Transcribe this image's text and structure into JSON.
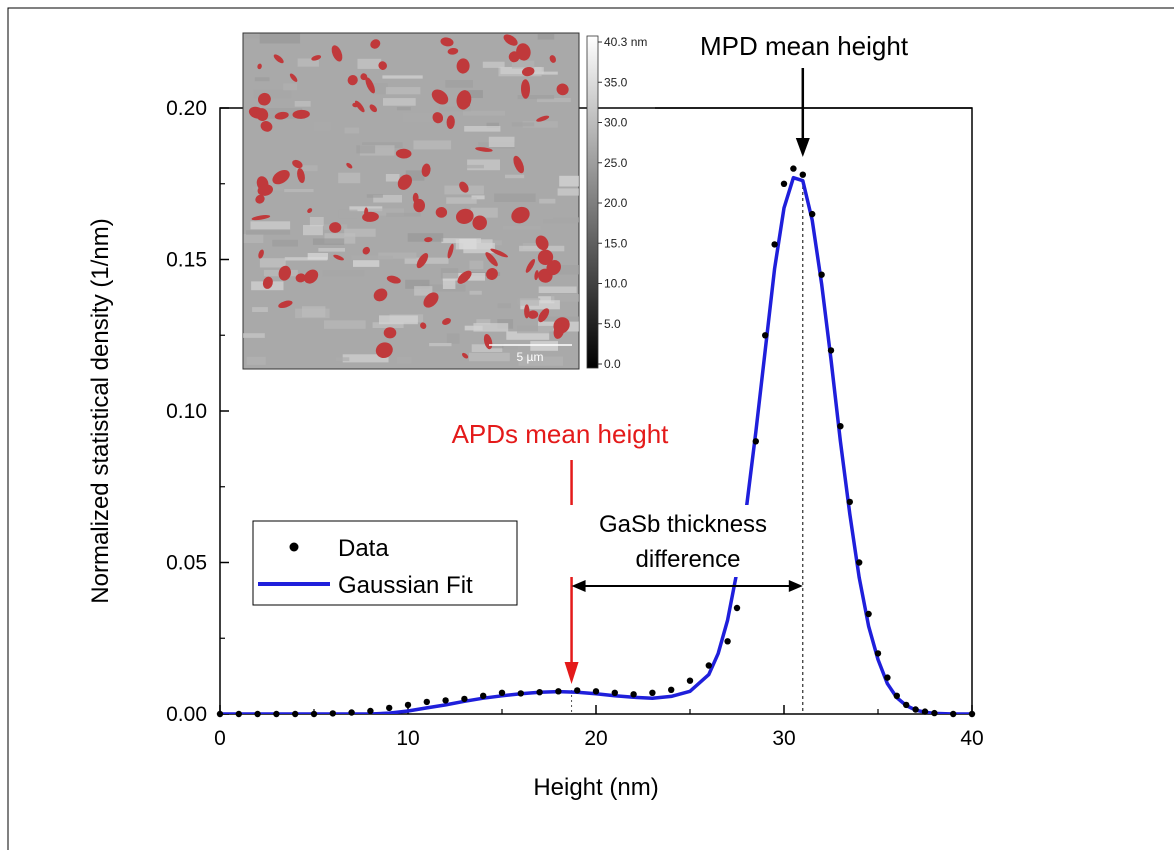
{
  "chart_data": {
    "type": "scatter",
    "xlabel": "Height (nm)",
    "ylabel": "Normalized statistical density (1/nm)",
    "xlim": [
      0,
      40
    ],
    "ylim": [
      0,
      0.2
    ],
    "x_ticks": [
      "0",
      "10",
      "20",
      "30",
      "40"
    ],
    "y_ticks": [
      "0.00",
      "0.05",
      "0.10",
      "0.15",
      "0.20"
    ],
    "grid": false,
    "legend_position": "middle-left",
    "series": [
      {
        "name": "Data",
        "style": "points",
        "color": "#000000",
        "x": [
          0,
          1,
          2,
          3,
          4,
          5,
          6,
          7,
          8,
          9,
          10,
          11,
          12,
          13,
          14,
          15,
          16,
          17,
          18,
          19,
          20,
          21,
          22,
          23,
          24,
          25,
          26,
          27,
          27.5,
          28,
          28.5,
          29,
          29.5,
          30,
          30.5,
          31,
          31.5,
          32,
          32.5,
          33,
          33.5,
          34,
          34.5,
          35,
          35.5,
          36,
          36.5,
          37,
          37.5,
          38,
          39,
          40
        ],
        "y": [
          0,
          0,
          0,
          0,
          0,
          0,
          0.0002,
          0.0005,
          0.001,
          0.002,
          0.003,
          0.004,
          0.0045,
          0.005,
          0.006,
          0.007,
          0.0068,
          0.0072,
          0.0075,
          0.0078,
          0.0075,
          0.007,
          0.0065,
          0.007,
          0.008,
          0.011,
          0.016,
          0.024,
          0.035,
          0.06,
          0.09,
          0.125,
          0.155,
          0.175,
          0.18,
          0.178,
          0.165,
          0.145,
          0.12,
          0.095,
          0.07,
          0.05,
          0.033,
          0.02,
          0.012,
          0.006,
          0.003,
          0.0015,
          0.0008,
          0.0003,
          0,
          0
        ]
      },
      {
        "name": "Gaussian Fit",
        "style": "line",
        "color": "#1f1fdb",
        "x": [
          0,
          2,
          4,
          6,
          8,
          9,
          10,
          11,
          12,
          13,
          14,
          15,
          16,
          17,
          18,
          19,
          20,
          21,
          22,
          23,
          24,
          25,
          26,
          26.5,
          27,
          27.5,
          28,
          28.5,
          29,
          29.5,
          30,
          30.5,
          31,
          31.5,
          32,
          32.5,
          33,
          33.5,
          34,
          34.5,
          35,
          35.5,
          36,
          36.5,
          37,
          37.5,
          38,
          39,
          40
        ],
        "y": [
          0,
          0,
          0,
          0,
          0,
          0.0003,
          0.001,
          0.002,
          0.003,
          0.0042,
          0.0052,
          0.006,
          0.0067,
          0.0072,
          0.0074,
          0.0072,
          0.0067,
          0.006,
          0.0055,
          0.0052,
          0.0058,
          0.0075,
          0.013,
          0.02,
          0.031,
          0.047,
          0.068,
          0.093,
          0.12,
          0.147,
          0.167,
          0.177,
          0.176,
          0.163,
          0.142,
          0.117,
          0.09,
          0.066,
          0.045,
          0.029,
          0.018,
          0.01,
          0.0054,
          0.0028,
          0.0013,
          0.0006,
          0.0002,
          0,
          0
        ]
      }
    ],
    "annotations": {
      "mpd_label": "MPD mean height",
      "mpd_x": 31,
      "apd_label": "APDs mean height",
      "apd_x": 18.7,
      "thickness_label_line1": "GaSb thickness",
      "thickness_label_line2": "difference"
    },
    "inset": {
      "colorbar_ticks": [
        "40.3 nm",
        "35.0",
        "30.0",
        "25.0",
        "20.0",
        "15.0",
        "10.0",
        "5.0",
        "0.0"
      ],
      "scale_bar_label": "5 µm",
      "highlight_color": "#c0393b"
    }
  },
  "colors": {
    "data": "#000000",
    "fit": "#1f1fdb",
    "apd_arrow": "#e41a1a"
  }
}
